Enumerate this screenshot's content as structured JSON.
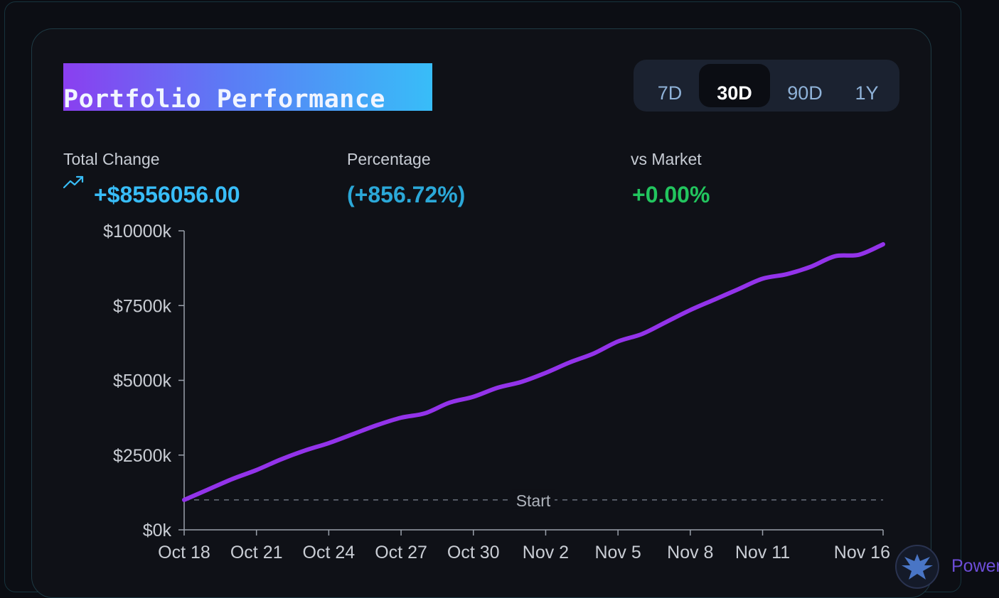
{
  "header": {
    "title": "Portfolio Performance"
  },
  "ranges": [
    {
      "label": "7D",
      "active": false
    },
    {
      "label": "30D",
      "active": true
    },
    {
      "label": "90D",
      "active": false
    },
    {
      "label": "1Y",
      "active": false
    }
  ],
  "stats": {
    "total_change": {
      "label": "Total Change",
      "value": "+$8556056.00"
    },
    "percentage": {
      "label": "Percentage",
      "value": "(+856.72%)"
    },
    "vs_market": {
      "label": "vs Market",
      "value": "+0.00%"
    }
  },
  "colors": {
    "line": "#9333ea",
    "total_change": "#38bdf8",
    "percentage": "#2ba8d8",
    "vs_market": "#22c55e"
  },
  "footer": {
    "powered_text": "Power"
  },
  "chart_data": {
    "type": "line",
    "ylim": [
      0,
      10000
    ],
    "yticks": [
      0,
      2500,
      5000,
      7500,
      10000
    ],
    "ytick_labels": [
      "$0k",
      "$2500k",
      "$5000k",
      "$7500k",
      "$10000k"
    ],
    "xlim": [
      0,
      29
    ],
    "xticks": [
      0,
      3,
      6,
      9,
      12,
      15,
      18,
      21,
      24,
      29
    ],
    "xtick_labels": [
      "Oct 18",
      "Oct 21",
      "Oct 24",
      "Oct 27",
      "Oct 30",
      "Nov 2",
      "Nov 5",
      "Nov 8",
      "Nov 11",
      "Nov 16"
    ],
    "reference_line": {
      "value": 1000,
      "label": "Start"
    },
    "series": [
      {
        "x": [
          0,
          1,
          2,
          3,
          4,
          5,
          6,
          7,
          8,
          9,
          10,
          11,
          12,
          13,
          14,
          15,
          16,
          17,
          18,
          19,
          20,
          21,
          22,
          23,
          24,
          25,
          26,
          27,
          28,
          29
        ],
        "values": [
          1000,
          1350,
          1700,
          2000,
          2350,
          2650,
          2900,
          3200,
          3500,
          3750,
          3900,
          4250,
          4450,
          4750,
          4950,
          5250,
          5600,
          5900,
          6300,
          6550,
          6950,
          7350,
          7700,
          8050,
          8400,
          8550,
          8800,
          9150,
          9200,
          9550
        ]
      }
    ]
  }
}
